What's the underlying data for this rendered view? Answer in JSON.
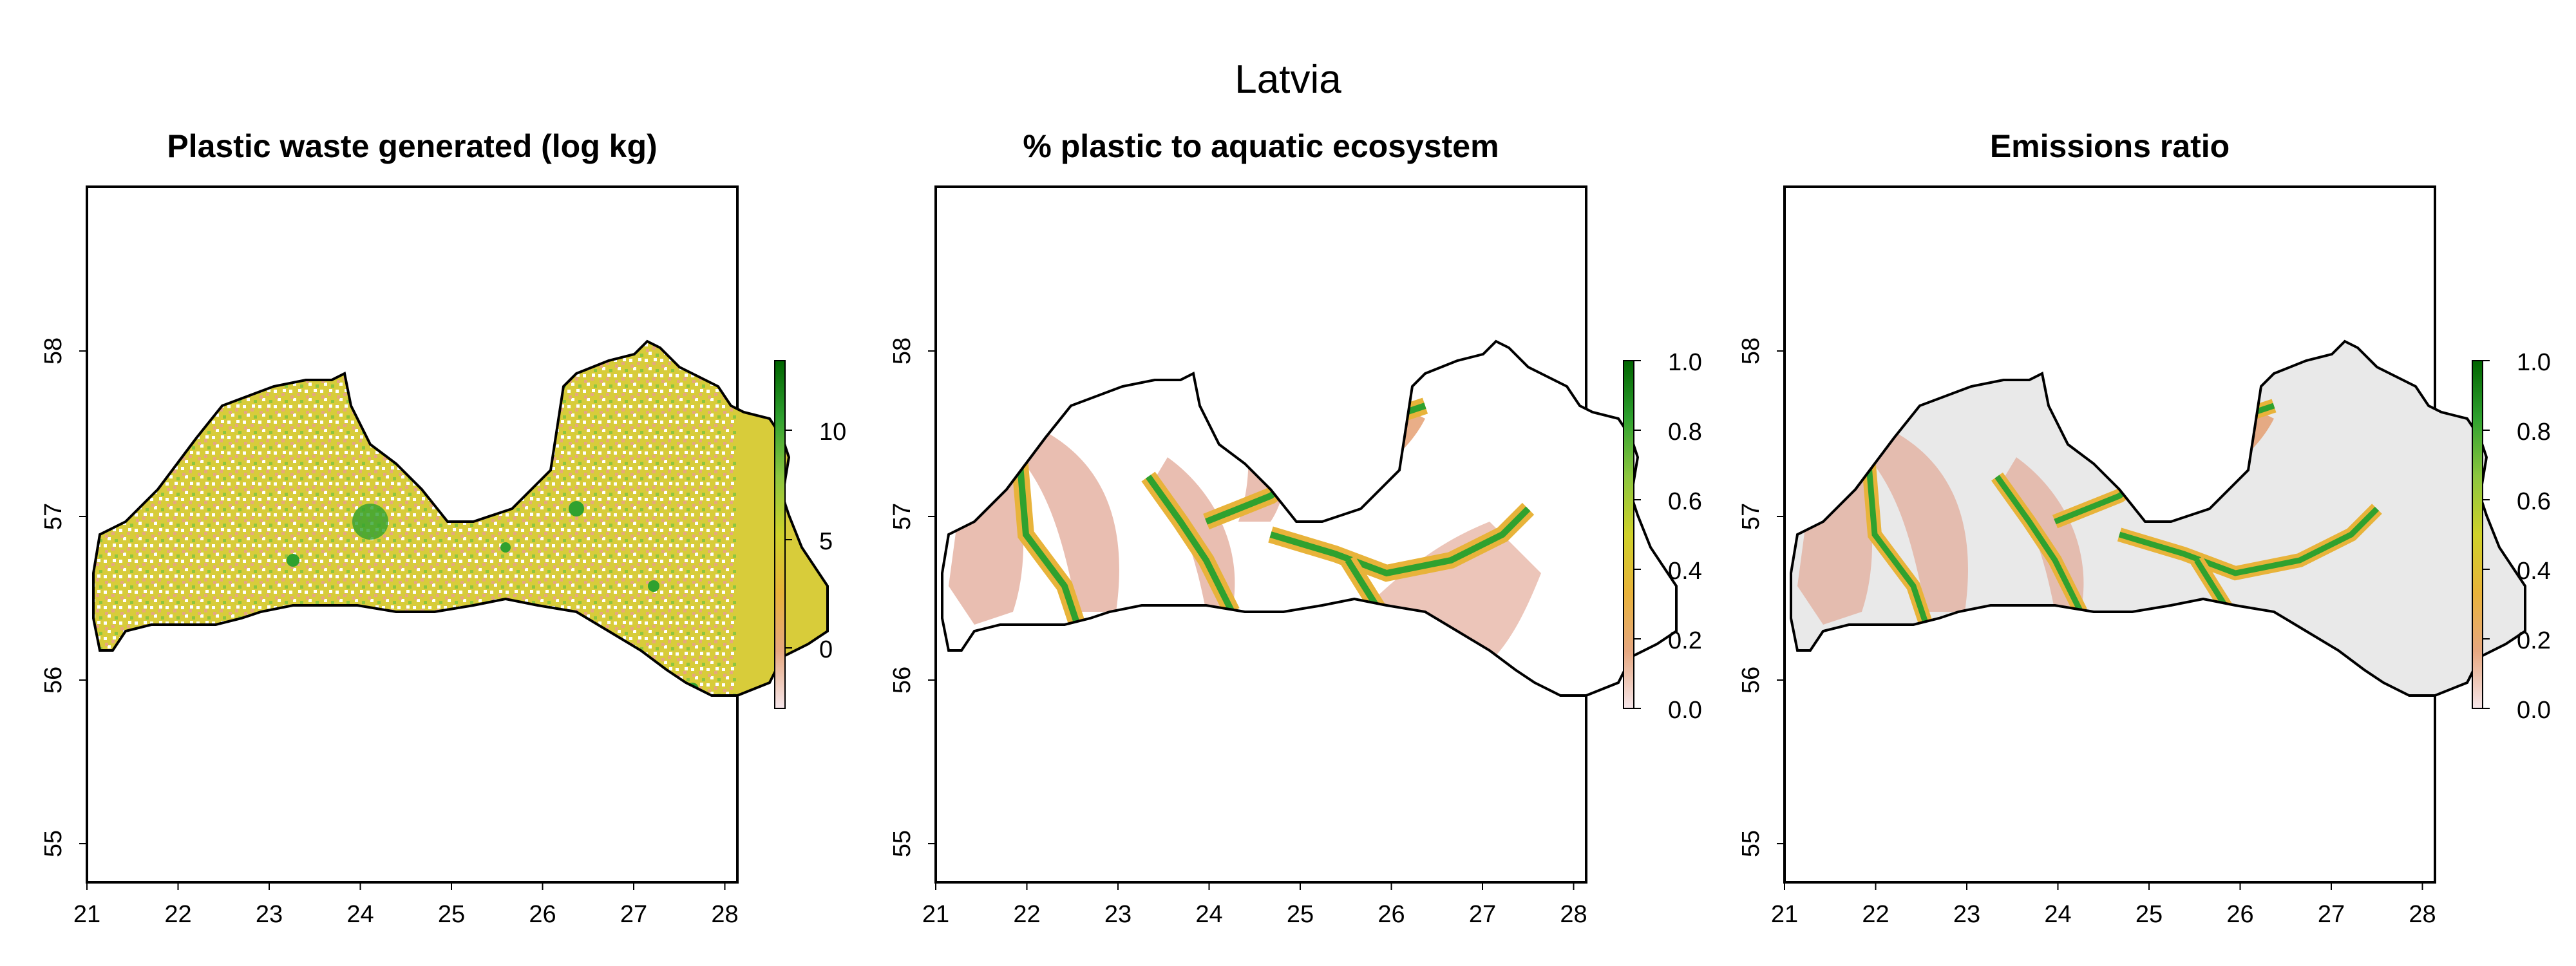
{
  "main_title": "Latvia",
  "x_ticks": [
    "21",
    "22",
    "23",
    "24",
    "25",
    "26",
    "27",
    "28"
  ],
  "y_ticks": [
    "55",
    "56",
    "57",
    "58"
  ],
  "panels": [
    {
      "title": "Plastic waste generated (log kg)",
      "legend_ticks": [
        "10",
        "5",
        "0"
      ],
      "legend_colors": [
        "#f6e6ea",
        "#e6a77f",
        "#e8b33a",
        "#cfd12a",
        "#8cc63f",
        "#2fa12f",
        "#006400"
      ]
    },
    {
      "title": "% plastic to aquatic ecosystem",
      "legend_ticks": [
        "1.0",
        "0.8",
        "0.6",
        "0.4",
        "0.2",
        "0.0"
      ],
      "legend_colors": [
        "#f6e6ea",
        "#e6a77f",
        "#e8b33a",
        "#cfd12a",
        "#8cc63f",
        "#2fa12f",
        "#006400"
      ]
    },
    {
      "title": "Emissions ratio",
      "legend_ticks": [
        "1.0",
        "0.8",
        "0.6",
        "0.4",
        "0.2",
        "0.0"
      ],
      "legend_colors": [
        "#f6e6ea",
        "#e6a77f",
        "#e8b33a",
        "#cfd12a",
        "#8cc63f",
        "#2fa12f",
        "#006400"
      ]
    }
  ]
}
